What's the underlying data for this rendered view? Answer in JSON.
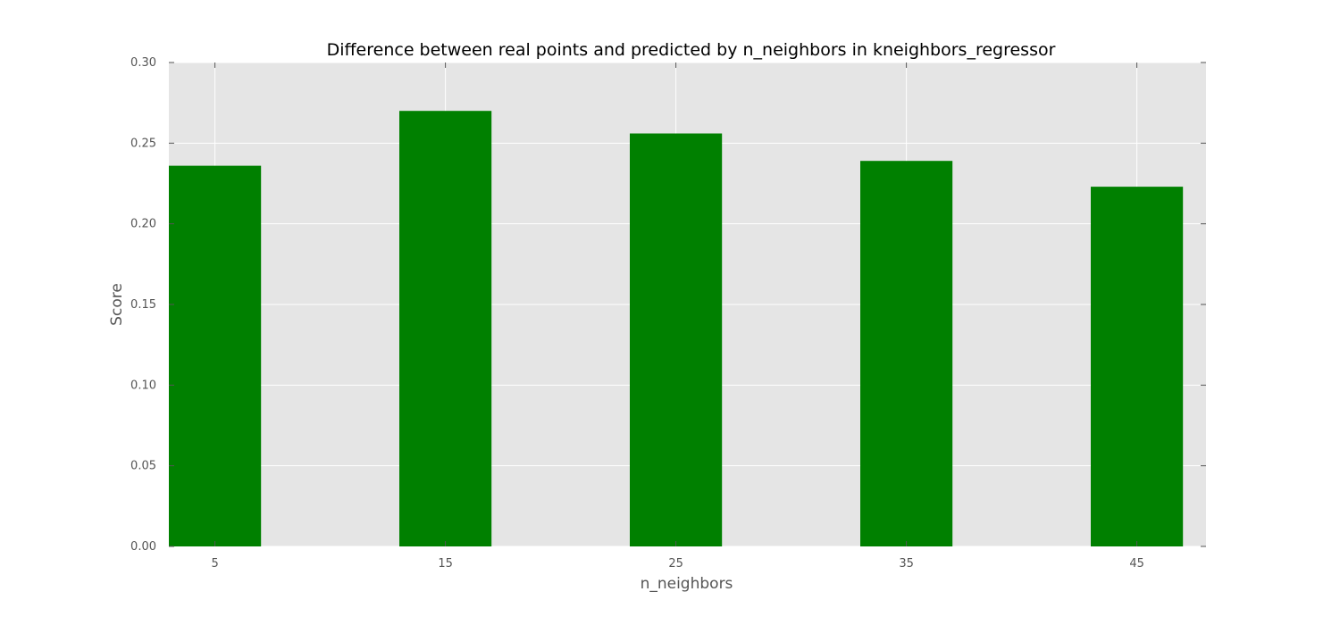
{
  "chart_data": {
    "type": "bar",
    "title": "Difference between real points and predicted by n_neighbors in kneighbors_regressor",
    "xlabel": "n_neighbors",
    "ylabel": "Score",
    "categories": [
      "5",
      "15",
      "25",
      "35",
      "45"
    ],
    "x": [
      5,
      15,
      25,
      35,
      45
    ],
    "values": [
      0.236,
      0.27,
      0.256,
      0.239,
      0.223
    ],
    "xlim": [
      3.0,
      48.0
    ],
    "ylim": [
      0.0,
      0.3
    ],
    "yticks": [
      "0.00",
      "0.05",
      "0.10",
      "0.15",
      "0.20",
      "0.25",
      "0.30"
    ],
    "bar_width": 4,
    "grid": true,
    "bar_color": "#008000",
    "plot_background": "#e5e5e5"
  }
}
